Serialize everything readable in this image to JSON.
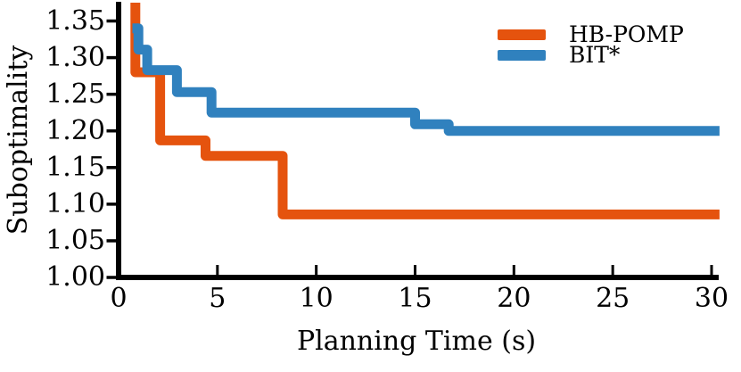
{
  "figure": {
    "background": "#ffffff",
    "axis_color": "#000000",
    "text_color": "#000000"
  },
  "chart_data": {
    "type": "line",
    "subtype": "step",
    "step_mode": "post",
    "title": "",
    "xlabel": "Planning Time (s)",
    "ylabel": "Suboptimality",
    "xlim": [
      0,
      30
    ],
    "ylim": [
      1.0,
      1.375
    ],
    "x_end": 30.4,
    "grid": false,
    "legend": {
      "position": "upper right",
      "entries": [
        "HB-POMP",
        "BIT*"
      ]
    },
    "x_ticks": [
      0,
      5,
      10,
      15,
      20,
      25,
      30
    ],
    "x_tick_labels": [
      "0",
      "5",
      "10",
      "15",
      "20",
      "25",
      "30"
    ],
    "y_ticks": [
      1.0,
      1.05,
      1.1,
      1.15,
      1.2,
      1.25,
      1.3,
      1.35
    ],
    "y_tick_labels": [
      "1.00",
      "1.05",
      "1.10",
      "1.15",
      "1.20",
      "1.25",
      "1.30",
      "1.35"
    ],
    "series": [
      {
        "name": "HB-POMP",
        "color": "#e5530e",
        "points": [
          [
            0.85,
            1.4
          ],
          [
            0.85,
            1.28
          ],
          [
            2.1,
            1.187
          ],
          [
            4.4,
            1.166
          ],
          [
            8.3,
            1.086
          ]
        ]
      },
      {
        "name": "BIT*",
        "color": "#3081be",
        "points": [
          [
            0.7,
            1.34
          ],
          [
            1.0,
            1.311
          ],
          [
            1.45,
            1.283
          ],
          [
            2.95,
            1.253
          ],
          [
            4.7,
            1.225
          ],
          [
            15.0,
            1.209
          ],
          [
            16.7,
            1.2
          ]
        ]
      }
    ]
  }
}
